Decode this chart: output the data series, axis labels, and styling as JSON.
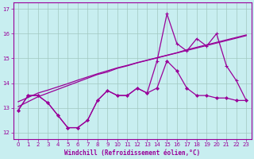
{
  "xlabel": "Windchill (Refroidissement éolien,°C)",
  "bg_color": "#c8eef0",
  "grid_color": "#a0c8c0",
  "line_color": "#990099",
  "x": [
    0,
    1,
    2,
    3,
    4,
    5,
    6,
    7,
    8,
    9,
    10,
    11,
    12,
    13,
    14,
    15,
    16,
    17,
    18,
    19,
    20,
    21,
    22,
    23
  ],
  "y_curve": [
    12.9,
    13.5,
    13.5,
    13.2,
    12.7,
    12.2,
    12.2,
    12.5,
    13.3,
    13.7,
    13.5,
    13.5,
    13.8,
    13.6,
    13.8,
    14.9,
    14.5,
    13.8,
    13.5,
    13.5,
    13.4,
    13.4,
    13.3,
    13.3
  ],
  "y_spike": [
    12.9,
    13.5,
    13.5,
    13.2,
    12.7,
    12.2,
    12.2,
    12.5,
    13.3,
    13.7,
    13.5,
    13.5,
    13.8,
    13.6,
    14.9,
    16.8,
    15.6,
    15.3,
    15.8,
    15.5,
    16.0,
    14.7,
    14.1,
    13.3
  ],
  "y_trend1": [
    13.05,
    13.25,
    13.45,
    13.6,
    13.75,
    13.9,
    14.05,
    14.2,
    14.35,
    14.45,
    14.6,
    14.7,
    14.82,
    14.92,
    15.02,
    15.12,
    15.22,
    15.32,
    15.42,
    15.52,
    15.62,
    15.72,
    15.82,
    15.92
  ],
  "y_trend2": [
    13.25,
    13.42,
    13.6,
    13.72,
    13.85,
    13.98,
    14.12,
    14.25,
    14.38,
    14.5,
    14.62,
    14.72,
    14.83,
    14.93,
    15.03,
    15.13,
    15.23,
    15.35,
    15.45,
    15.55,
    15.65,
    15.75,
    15.85,
    15.95
  ],
  "ylim": [
    11.75,
    17.25
  ],
  "xlim": [
    -0.5,
    23.5
  ],
  "yticks": [
    12,
    13,
    14,
    15,
    16,
    17
  ],
  "xticks": [
    0,
    1,
    2,
    3,
    4,
    5,
    6,
    7,
    8,
    9,
    10,
    11,
    12,
    13,
    14,
    15,
    16,
    17,
    18,
    19,
    20,
    21,
    22,
    23
  ],
  "xlabel_fontsize": 5.5,
  "tick_fontsize": 5.0
}
